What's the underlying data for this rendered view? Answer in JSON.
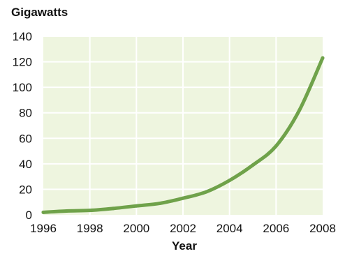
{
  "chart_data": {
    "type": "line",
    "title": "",
    "ylabel": "Gigawatts",
    "xlabel": "Year",
    "x": [
      1996,
      1997,
      1998,
      1999,
      2000,
      2001,
      2002,
      2003,
      2004,
      2005,
      2006,
      2007,
      2008
    ],
    "series": [
      {
        "values": [
          2,
          3,
          3.5,
          5,
          7,
          9,
          13,
          18,
          27,
          39,
          54,
          82,
          123
        ]
      }
    ],
    "xlim": [
      1996,
      2008
    ],
    "ylim": [
      0,
      140
    ],
    "xticks": [
      "1996",
      "1998",
      "2000",
      "2002",
      "2004",
      "2006",
      "2008"
    ],
    "yticks": [
      "0",
      "20",
      "40",
      "60",
      "80",
      "100",
      "120",
      "140"
    ],
    "grid": true,
    "colors": {
      "plot_background": "#eef5df",
      "gridline": "#ffffff",
      "line": "#6fa24a"
    }
  }
}
